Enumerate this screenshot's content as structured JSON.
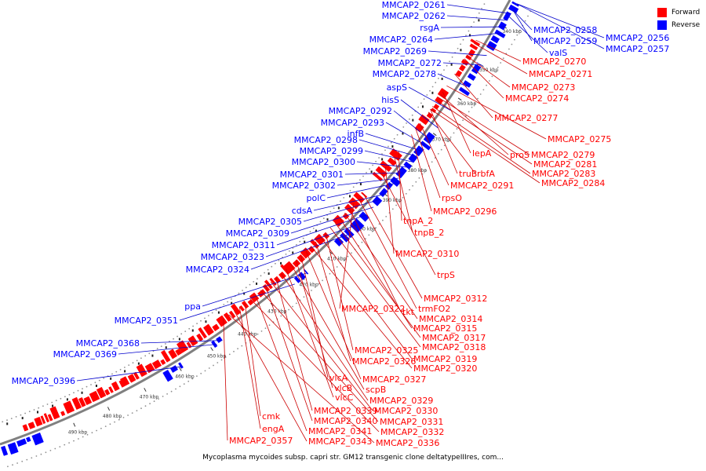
{
  "caption": "Mycoplasma mycoides subsp. capri str. GM12 transgenic clone deltatypeIIIres, com...",
  "legend": [
    {
      "label": "Forward",
      "color": "#ff0000"
    },
    {
      "label": "Reverse",
      "color": "#0000ff"
    }
  ],
  "colors": {
    "forward": "#ff0000",
    "reverse": "#0000ff",
    "forward_line": "#cc0000",
    "reverse_line": "#0000cc",
    "backbone": "#808080"
  },
  "ticks": [
    "340 kbp",
    "350 kbp",
    "360 kbp",
    "370 kbp",
    "380 kbp",
    "390 kbp",
    "400 kbp",
    "410 kbp",
    "420 kbp",
    "430 kbp",
    "440 kbp",
    "450 kbp",
    "460 kbp",
    "470 kbp",
    "480 kbp",
    "490 kbp"
  ],
  "reverse_labels": [
    "MMCAP2_0261",
    "MMCAP2_0262",
    "rsgA",
    "MMCAP2_0264",
    "MMCAP2_0269",
    "MMCAP2_0272",
    "MMCAP2_0278",
    "aspS",
    "hisS",
    "MMCAP2_0292",
    "MMCAP2_0293",
    "infB",
    "MMCAP2_0298",
    "MMCAP2_0299",
    "MMCAP2_0300",
    "MMCAP2_0301",
    "MMCAP2_0302",
    "polC",
    "cdsA",
    "MMCAP2_0305",
    "MMCAP2_0309",
    "MMCAP2_0311",
    "MMCAP2_0323",
    "MMCAP2_0324",
    "ppa",
    "MMCAP2_0351",
    "MMCAP2_0368",
    "MMCAP2_0369",
    "MMCAP2_0396",
    "MMCAP2_0258",
    "MMCAP2_0259",
    "valS",
    "MMCAP2_0256",
    "MMCAP2_0257"
  ],
  "forward_labels": [
    "MMCAP2_0270",
    "MMCAP2_0271",
    "MMCAP2_0273",
    "MMCAP2_0274",
    "MMCAP2_0277",
    "MMCAP2_0275",
    "lepA",
    "proS",
    "MMCAP2_0279",
    "MMCAP2_0281",
    "truB",
    "rbfA",
    "MMCAP2_0283",
    "MMCAP2_0284",
    "MMCAP2_0291",
    "rpsO",
    "MMCAP2_0296",
    "tnpA_2",
    "tnpB_2",
    "MMCAP2_0310",
    "trpS",
    "MMCAP2_0312",
    "trmFO2",
    "MMCAP2_0322",
    "tkt",
    "MMCAP2_0314",
    "MMCAP2_0315",
    "MMCAP2_0317",
    "MMCAP2_0318",
    "MMCAP2_0325",
    "MMCAP2_0319",
    "MMCAP2_0326",
    "MMCAP2_0320",
    "MMCAP2_0327",
    "vlcA",
    "vlcB",
    "scpB",
    "vlcC",
    "MMCAP2_0329",
    "MMCAP2_0339",
    "MMCAP2_0330",
    "MMCAP2_0340",
    "MMCAP2_0331",
    "cmk",
    "engA",
    "MMCAP2_0341",
    "MMCAP2_0332",
    "MMCAP2_0357",
    "MMCAP2_0343",
    "MMCAP2_0336"
  ]
}
